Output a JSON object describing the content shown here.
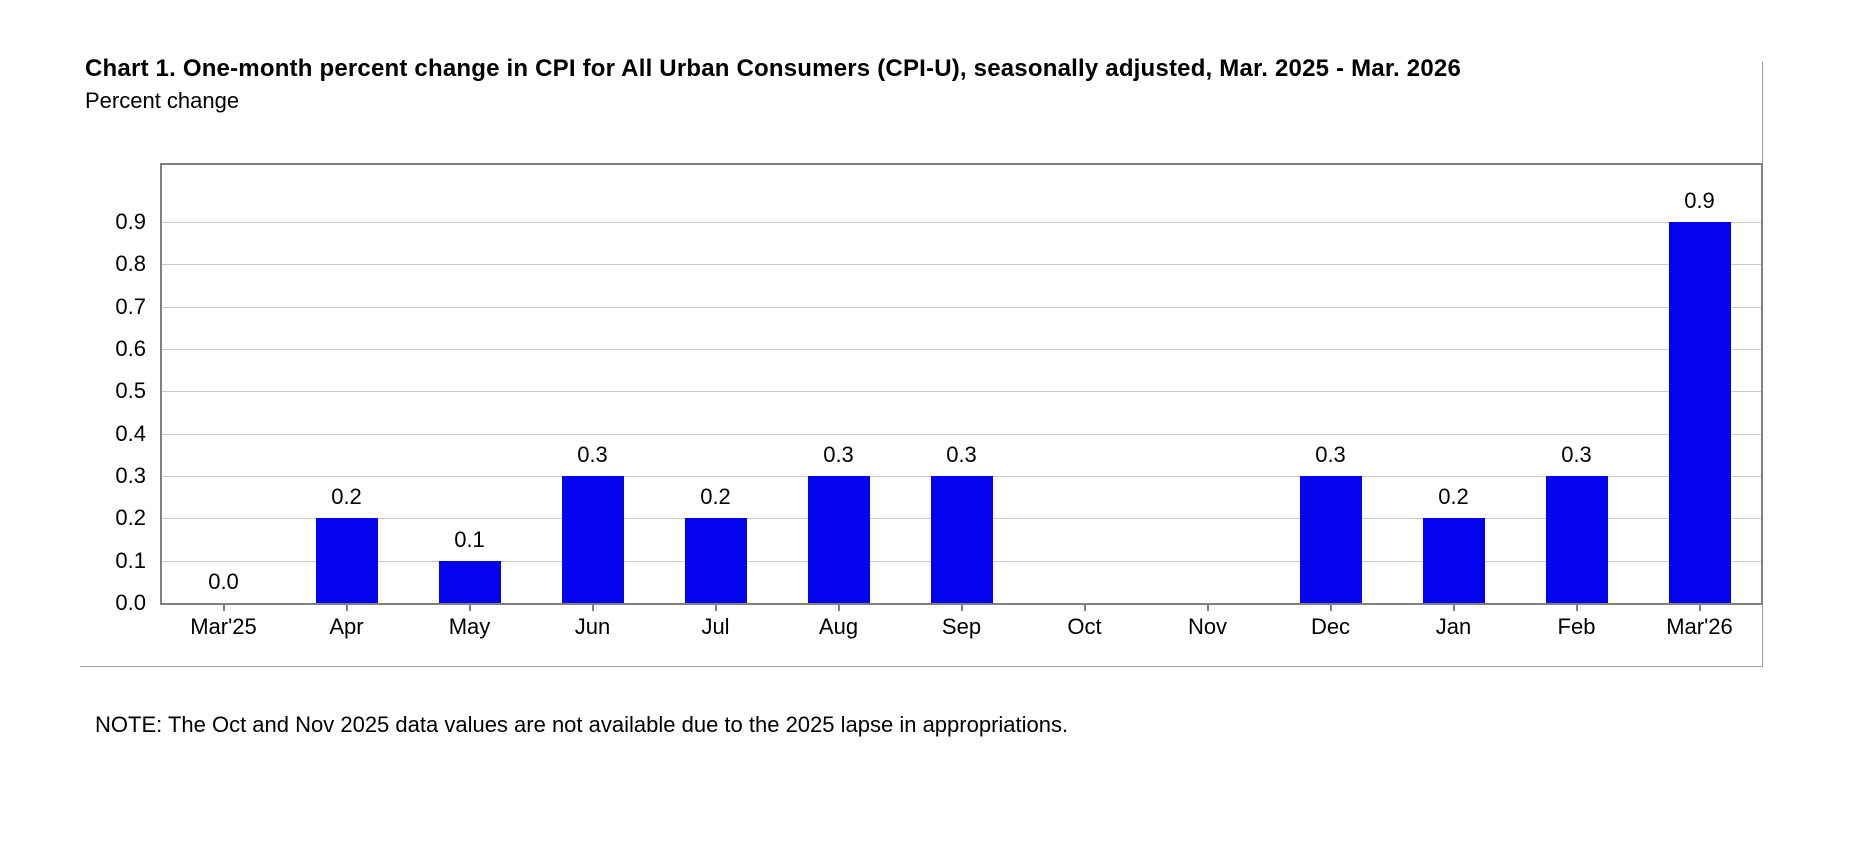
{
  "chart_data": {
    "type": "bar",
    "title": "Chart 1. One-month percent change in CPI for All Urban Consumers (CPI-U), seasonally adjusted, Mar. 2025 - Mar. 2026",
    "axis_caption": "Percent change",
    "categories": [
      "Mar'25",
      "Apr",
      "May",
      "Jun",
      "Jul",
      "Aug",
      "Sep",
      "Oct",
      "Nov",
      "Dec",
      "Jan",
      "Feb",
      "Mar'26"
    ],
    "values": [
      0.0,
      0.2,
      0.1,
      0.3,
      0.2,
      0.3,
      0.3,
      null,
      null,
      0.3,
      0.2,
      0.3,
      0.9
    ],
    "bar_labels": [
      "0.0",
      "0.2",
      "0.1",
      "0.3",
      "0.2",
      "0.3",
      "0.3",
      "",
      "",
      "0.3",
      "0.2",
      "0.3",
      "0.9"
    ],
    "y_ticks": [
      "0.0",
      "0.1",
      "0.2",
      "0.3",
      "0.4",
      "0.5",
      "0.6",
      "0.7",
      "0.8",
      "0.9"
    ],
    "ylim": [
      0,
      1.035
    ],
    "grid": "horizontal",
    "legend": "none",
    "bar_color": "#0404f0",
    "gridline_color": "#c9c9c9",
    "note": "NOTE: The Oct and Nov 2025 data values are not available due to the 2025 lapse in appropriations."
  }
}
